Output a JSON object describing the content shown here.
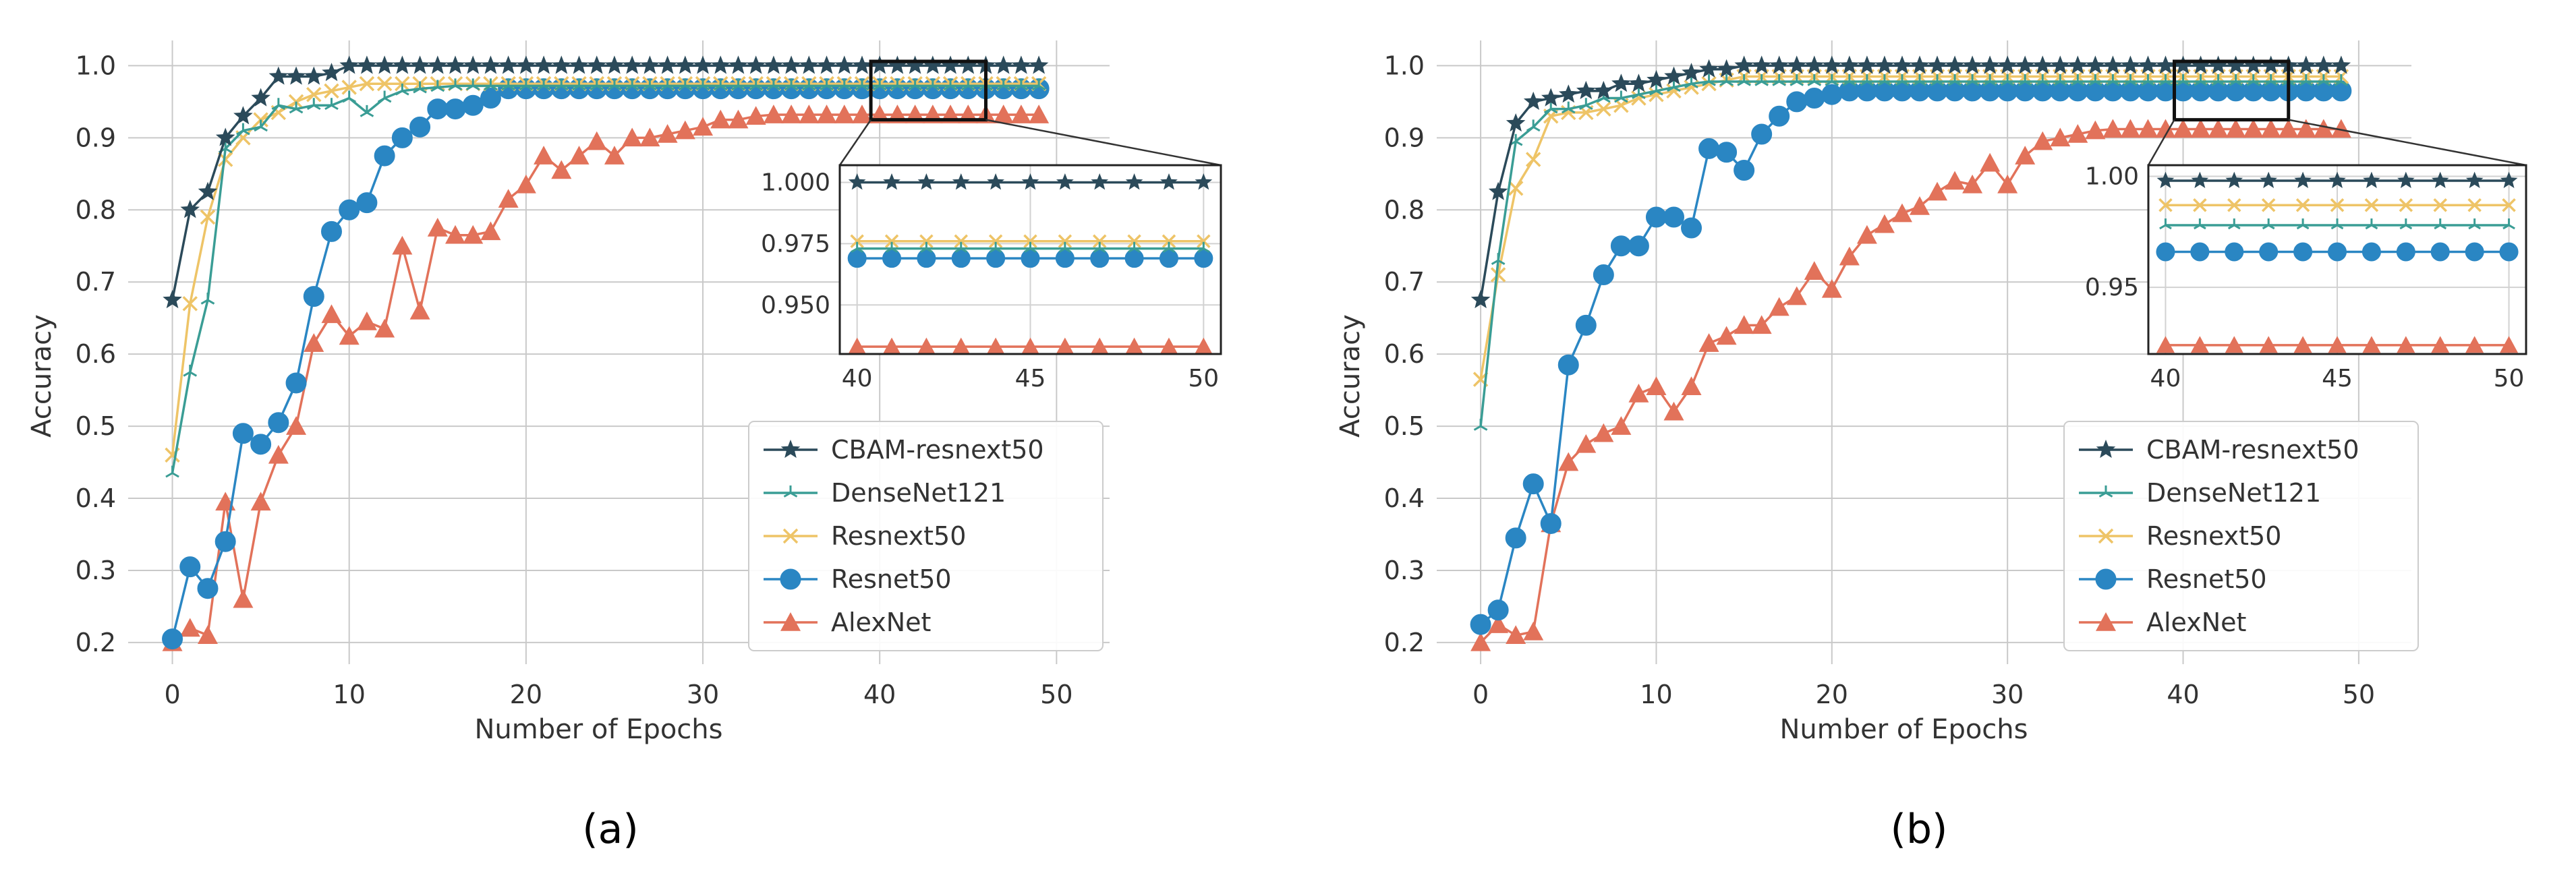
{
  "figure": {
    "panels": [
      "(a)",
      "(b)"
    ]
  },
  "colors": {
    "CBAM-resnext50": "#2b4a5a",
    "DenseNet121": "#3a9d95",
    "Resnext50": "#eec467",
    "Resnet50": "#2a86c3",
    "AlexNet": "#e2725a"
  },
  "chart_data": [
    {
      "type": "line",
      "panel_label": "a",
      "title": "",
      "xlabel": "Number of Epochs",
      "ylabel": "Accuracy",
      "xlim": [
        -2.5,
        53
      ],
      "ylim": [
        0.17,
        1.035
      ],
      "xticks": [
        0,
        10,
        20,
        30,
        40,
        50
      ],
      "yticks": [
        0.2,
        0.3,
        0.4,
        0.5,
        0.6,
        0.7,
        0.8,
        0.9,
        1.0
      ],
      "ytick_labels": [
        "0.2",
        "0.3",
        "0.4",
        "0.5",
        "0.6",
        "0.7",
        "0.8",
        "0.9",
        "1.0"
      ],
      "grid": true,
      "legend_position": "lower-right",
      "series": [
        {
          "name": "CBAM-resnext50",
          "marker": "star",
          "early": [
            0.675,
            0.8,
            0.825,
            0.9,
            0.93,
            0.955,
            0.985,
            0.985,
            0.985,
            0.99,
            1.0
          ],
          "plateau": 1.0
        },
        {
          "name": "DenseNet121",
          "marker": "tri",
          "early": [
            0.435,
            0.575,
            0.675,
            0.885,
            0.91,
            0.915,
            0.945,
            0.94,
            0.945,
            0.945,
            0.955,
            0.935,
            0.955,
            0.965,
            0.968,
            0.97
          ],
          "plateau": 0.972
        },
        {
          "name": "Resnext50",
          "marker": "x",
          "early": [
            0.46,
            0.67,
            0.79,
            0.87,
            0.9,
            0.925,
            0.935,
            0.95,
            0.96,
            0.965,
            0.97
          ],
          "plateau": 0.975
        },
        {
          "name": "Resnet50",
          "marker": "circle",
          "early": [
            0.205,
            0.305,
            0.275,
            0.34,
            0.49,
            0.475,
            0.505,
            0.56,
            0.68,
            0.77,
            0.8,
            0.81,
            0.875,
            0.9,
            0.915,
            0.94,
            0.94,
            0.945,
            0.955
          ],
          "plateau": 0.968
        },
        {
          "name": "AlexNet",
          "marker": "triangle",
          "early": [
            0.2,
            0.22,
            0.21,
            0.395,
            0.26,
            0.395,
            0.46,
            0.5,
            0.615,
            0.655,
            0.625,
            0.645,
            0.635,
            0.75,
            0.66,
            0.775,
            0.765,
            0.765,
            0.77,
            0.815,
            0.835,
            0.875,
            0.855,
            0.875,
            0.895,
            0.875,
            0.9,
            0.9,
            0.905,
            0.91,
            0.915,
            0.925,
            0.925,
            0.93
          ],
          "plateau": 0.932
        }
      ],
      "inset": {
        "xlim": [
          39.5,
          50.5
        ],
        "ylim": [
          0.93,
          1.007
        ],
        "xticks": [
          40,
          45,
          50
        ],
        "yticks": [
          0.95,
          0.975,
          1.0
        ],
        "ytick_labels": [
          "0.950",
          "0.975",
          "1.000"
        ],
        "levels": {
          "CBAM-resnext50": 1.0,
          "DenseNet121": 0.973,
          "Resnext50": 0.976,
          "Resnet50": 0.969,
          "AlexNet": 0.933
        }
      }
    },
    {
      "type": "line",
      "panel_label": "b",
      "title": "",
      "xlabel": "Number of Epochs",
      "ylabel": "Accuracy",
      "xlim": [
        -2.5,
        53
      ],
      "ylim": [
        0.17,
        1.035
      ],
      "xticks": [
        0,
        10,
        20,
        30,
        40,
        50
      ],
      "yticks": [
        0.2,
        0.3,
        0.4,
        0.5,
        0.6,
        0.7,
        0.8,
        0.9,
        1.0
      ],
      "ytick_labels": [
        "0.2",
        "0.3",
        "0.4",
        "0.5",
        "0.6",
        "0.7",
        "0.8",
        "0.9",
        "1.0"
      ],
      "grid": true,
      "legend_position": "lower-right",
      "series": [
        {
          "name": "CBAM-resnext50",
          "marker": "star",
          "early": [
            0.675,
            0.825,
            0.92,
            0.95,
            0.955,
            0.96,
            0.965,
            0.965,
            0.975,
            0.975,
            0.98,
            0.985,
            0.99,
            0.995,
            0.995
          ],
          "plateau": 1.0
        },
        {
          "name": "DenseNet121",
          "marker": "tri",
          "early": [
            0.5,
            0.73,
            0.895,
            0.915,
            0.94,
            0.94,
            0.945,
            0.955,
            0.955,
            0.96,
            0.965,
            0.97,
            0.975
          ],
          "plateau": 0.978
        },
        {
          "name": "Resnext50",
          "marker": "x",
          "early": [
            0.565,
            0.71,
            0.83,
            0.87,
            0.93,
            0.935,
            0.935,
            0.94,
            0.945,
            0.955,
            0.96,
            0.965,
            0.97,
            0.975,
            0.98
          ],
          "plateau": 0.985
        },
        {
          "name": "Resnet50",
          "marker": "circle",
          "early": [
            0.225,
            0.245,
            0.345,
            0.42,
            0.365,
            0.585,
            0.64,
            0.71,
            0.75,
            0.75,
            0.79,
            0.79,
            0.775,
            0.885,
            0.88,
            0.855,
            0.905,
            0.93,
            0.95,
            0.955,
            0.96
          ],
          "plateau": 0.965
        },
        {
          "name": "AlexNet",
          "marker": "triangle",
          "early": [
            0.2,
            0.225,
            0.21,
            0.215,
            0.365,
            0.45,
            0.475,
            0.49,
            0.5,
            0.545,
            0.555,
            0.52,
            0.555,
            0.615,
            0.625,
            0.64,
            0.64,
            0.665,
            0.68,
            0.715,
            0.69,
            0.735,
            0.765,
            0.78,
            0.795,
            0.805,
            0.825,
            0.84,
            0.835,
            0.865,
            0.835,
            0.875,
            0.895,
            0.9,
            0.905,
            0.91
          ],
          "plateau": 0.912
        }
      ],
      "inset": {
        "xlim": [
          39.5,
          50.5
        ],
        "ylim": [
          0.92,
          1.005
        ],
        "xticks": [
          40,
          45,
          50
        ],
        "yticks": [
          0.95,
          1.0
        ],
        "ytick_labels": [
          "0.95",
          "1.00"
        ],
        "levels": {
          "CBAM-resnext50": 0.998,
          "DenseNet121": 0.978,
          "Resnext50": 0.987,
          "Resnet50": 0.966,
          "AlexNet": 0.924
        }
      }
    }
  ]
}
